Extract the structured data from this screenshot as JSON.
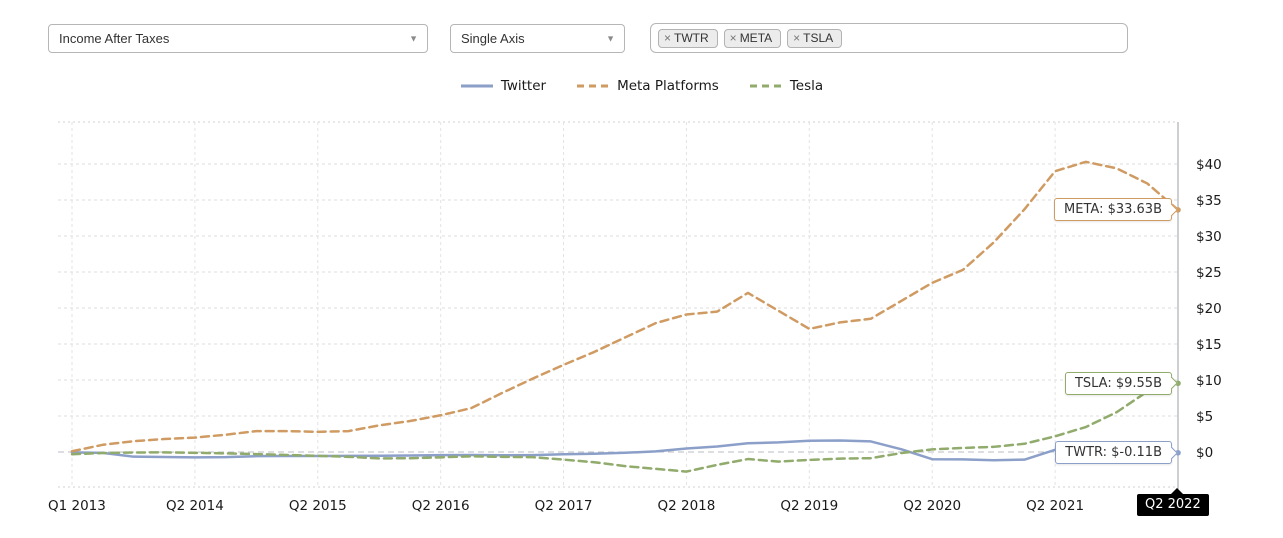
{
  "controls": {
    "metric_select": {
      "value": "Income After Taxes"
    },
    "axis_select": {
      "value": "Single Axis"
    },
    "ticker_input": {
      "remove_glyph": "×",
      "tags": [
        "TWTR",
        "META",
        "TSLA"
      ]
    }
  },
  "callouts": [
    {
      "ticker": "META",
      "text": "META: $33.63B",
      "value": 33.63
    },
    {
      "ticker": "TSLA",
      "text": "TSLA: $9.55B",
      "value": 9.55
    },
    {
      "ticker": "TWTR",
      "text": "TWTR: $-0.11B",
      "value": -0.11
    }
  ],
  "tooltip": {
    "label": "Q2 2022"
  },
  "chart_data": {
    "type": "line",
    "title": "",
    "unit": "$B",
    "grid": true,
    "legend_position": "top",
    "ylim": [
      -5,
      46
    ],
    "y_tick_prefix": "$",
    "y_ticks": [
      0,
      5,
      10,
      15,
      20,
      25,
      30,
      35,
      40
    ],
    "x": [
      "Q1 2013",
      "Q3 2013",
      "Q4 2013",
      "Q1 2014",
      "Q2 2014",
      "Q3 2014",
      "Q4 2014",
      "Q1 2015",
      "Q2 2015",
      "Q3 2015",
      "Q4 2015",
      "Q1 2016",
      "Q2 2016",
      "Q3 2016",
      "Q4 2016",
      "Q1 2017",
      "Q2 2017",
      "Q3 2017",
      "Q4 2017",
      "Q1 2018",
      "Q2 2018",
      "Q3 2018",
      "Q4 2018",
      "Q1 2019",
      "Q2 2019",
      "Q3 2019",
      "Q4 2019",
      "Q1 2020",
      "Q2 2020",
      "Q3 2020",
      "Q4 2020",
      "Q1 2021",
      "Q2 2021",
      "Q3 2021",
      "Q4 2021",
      "Q1 2022",
      "Q2 2022"
    ],
    "x_tick_labels": [
      "Q1 2013",
      "Q2 2014",
      "Q2 2015",
      "Q2 2016",
      "Q2 2017",
      "Q2 2018",
      "Q2 2019",
      "Q2 2020",
      "Q2 2021",
      "Q2 2022"
    ],
    "series": [
      {
        "name": "Twitter",
        "ticker": "TWTR",
        "color": "#8b9fc9",
        "style": "solid",
        "values": [
          -0.06,
          -0.12,
          -0.65,
          -0.7,
          -0.74,
          -0.71,
          -0.58,
          -0.55,
          -0.55,
          -0.53,
          -0.52,
          -0.48,
          -0.43,
          -0.42,
          -0.46,
          -0.43,
          -0.32,
          -0.25,
          -0.11,
          0.09,
          0.49,
          0.77,
          1.21,
          1.33,
          1.56,
          1.59,
          1.47,
          0.37,
          -1.0,
          -1.02,
          -1.14,
          -1.06,
          0.3,
          -0.27,
          -0.22,
          0.22,
          -0.11
        ]
      },
      {
        "name": "Meta Platforms",
        "ticker": "META",
        "color": "#cf9b62",
        "style": "dashed",
        "values": [
          0.1,
          1.0,
          1.5,
          1.8,
          2.0,
          2.4,
          2.9,
          2.9,
          2.8,
          2.9,
          3.7,
          4.3,
          5.1,
          6.1,
          8.2,
          10.2,
          12.1,
          13.9,
          15.9,
          17.9,
          19.1,
          19.5,
          22.1,
          19.6,
          17.1,
          18.0,
          18.5,
          21.0,
          23.5,
          25.3,
          29.1,
          33.7,
          39.0,
          40.3,
          39.4,
          37.3,
          33.63
        ]
      },
      {
        "name": "Tesla",
        "ticker": "TSLA",
        "color": "#90ab6c",
        "style": "dashed",
        "values": [
          -0.31,
          -0.14,
          -0.07,
          -0.05,
          -0.11,
          -0.19,
          -0.29,
          -0.41,
          -0.53,
          -0.67,
          -0.89,
          -0.86,
          -0.74,
          -0.6,
          -0.67,
          -0.72,
          -1.06,
          -1.42,
          -1.96,
          -2.34,
          -2.72,
          -1.79,
          -0.98,
          -1.33,
          -1.1,
          -0.92,
          -0.86,
          -0.14,
          0.37,
          0.56,
          0.72,
          1.14,
          2.18,
          3.47,
          5.52,
          8.4,
          9.55
        ]
      }
    ]
  }
}
